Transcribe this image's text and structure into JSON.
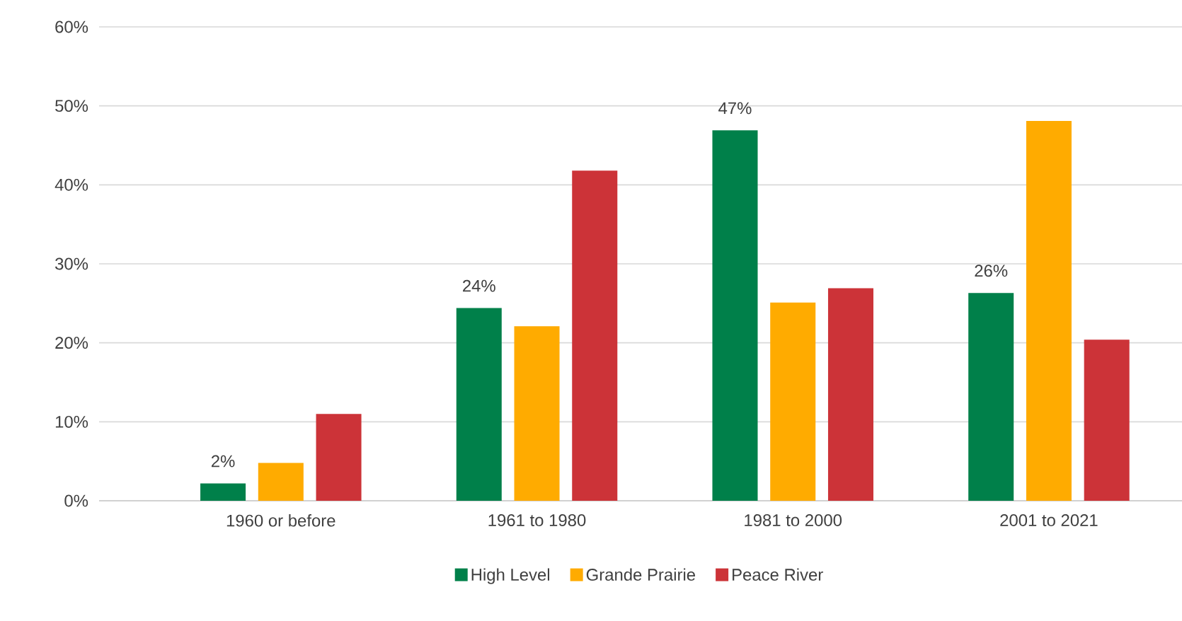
{
  "chart_data": {
    "type": "bar",
    "categories": [
      "1960 or before",
      "1961 to 1980",
      "1981 to 2000",
      "2001 to 2021"
    ],
    "series": [
      {
        "name": "High Level",
        "color": "#00804a",
        "values": [
          2.2,
          24.4,
          46.9,
          26.3
        ],
        "value_labels": [
          "2%",
          "24%",
          "47%",
          "26%"
        ]
      },
      {
        "name": "Grande Prairie",
        "color": "#ffab00",
        "values": [
          4.8,
          22.1,
          25.1,
          48.1
        ]
      },
      {
        "name": "Peace River",
        "color": "#cc3338",
        "values": [
          11.0,
          41.8,
          26.9,
          20.4
        ]
      }
    ],
    "ylim": [
      0,
      60
    ],
    "yticks": [
      {
        "value": 0,
        "label": "0%"
      },
      {
        "value": 10,
        "label": "10%"
      },
      {
        "value": 20,
        "label": "20%"
      },
      {
        "value": 30,
        "label": "30%"
      },
      {
        "value": 40,
        "label": "40%"
      },
      {
        "value": 50,
        "label": "50%"
      },
      {
        "value": 60,
        "label": "60%"
      }
    ],
    "grid": "y",
    "legend": "bottom"
  }
}
